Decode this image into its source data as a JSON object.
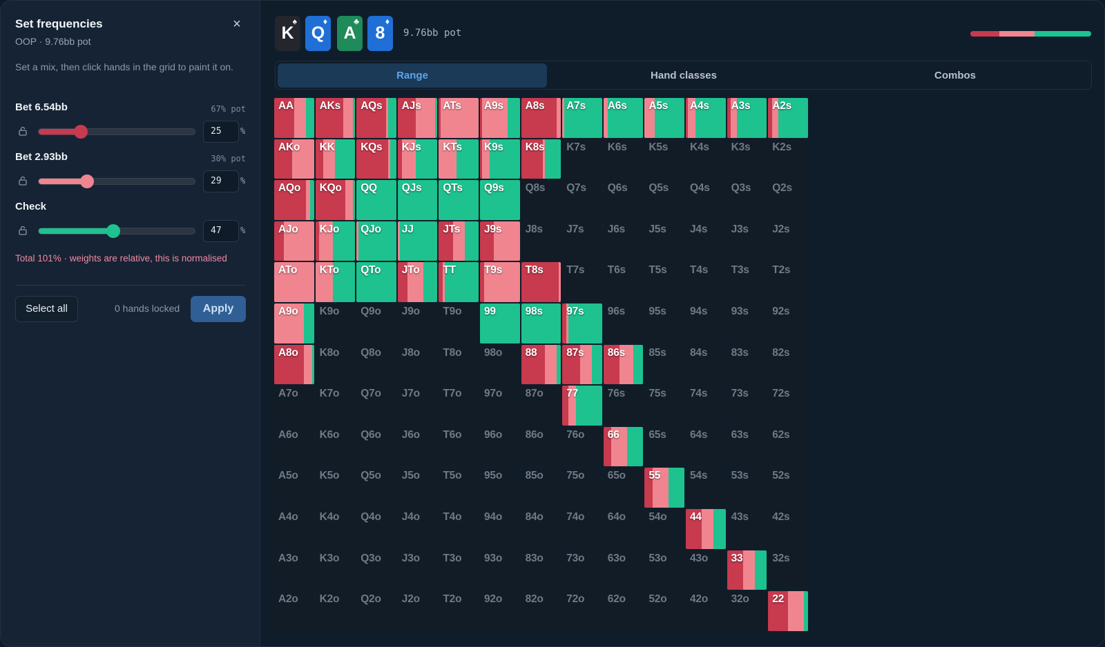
{
  "panel": {
    "title": "Set frequencies",
    "subtitle": "OOP · 9.76bb pot",
    "close_icon": "×",
    "description": "Set a mix, then click hands in the grid to paint it on.",
    "actions": [
      {
        "label": "Bet 6.54bb",
        "pot": "67% pot",
        "value": "25",
        "unit": "%",
        "level": 0.27,
        "color": "#c83a4e"
      },
      {
        "label": "Bet 2.93bb",
        "pot": "30% pot",
        "value": "29",
        "unit": "%",
        "level": 0.31,
        "color": "#f08590"
      },
      {
        "label": "Check",
        "pot": "",
        "value": "47",
        "unit": "%",
        "level": 0.48,
        "color": "#1ec28f"
      }
    ],
    "total_note": "Total 101% · weights are relative, this is normalised",
    "select_all_label": "Select all",
    "locked_text": "0 hands locked",
    "apply_label": "Apply"
  },
  "board": [
    {
      "rank": "K",
      "suit": "♠",
      "color": "#23262c"
    },
    {
      "rank": "Q",
      "suit": "♦",
      "color": "#1f6fd6"
    },
    {
      "rank": "A",
      "suit": "♣",
      "color": "#1f8a5a"
    },
    {
      "rank": "8",
      "suit": "♦",
      "color": "#1f6fd6"
    }
  ],
  "pot_label": "9.76bb pot",
  "overall_mix": [
    0.24,
    0.29,
    0.47
  ],
  "tabs": [
    {
      "label": "Range",
      "active": true
    },
    {
      "label": "Hand classes",
      "active": false
    },
    {
      "label": "Combos",
      "active": false
    }
  ],
  "colors": {
    "bet_big": "#c83a4e",
    "bet_small": "#f08590",
    "check": "#1ec28f"
  },
  "grid": {
    "rows": [
      [
        "AA",
        "AKs",
        "AQs",
        "AJs",
        "ATs",
        "A9s",
        "A8s",
        "A7s",
        "A6s",
        "A5s",
        "A4s",
        "A3s",
        "A2s"
      ],
      [
        "AKo",
        "KK",
        "KQs",
        "KJs",
        "KTs",
        "K9s",
        "K8s",
        "K7s",
        "K6s",
        "K5s",
        "K4s",
        "K3s",
        "K2s"
      ],
      [
        "AQo",
        "KQo",
        "QQ",
        "QJs",
        "QTs",
        "Q9s",
        "Q8s",
        "Q7s",
        "Q6s",
        "Q5s",
        "Q4s",
        "Q3s",
        "Q2s"
      ],
      [
        "AJo",
        "KJo",
        "QJo",
        "JJ",
        "JTs",
        "J9s",
        "J8s",
        "J7s",
        "J6s",
        "J5s",
        "J4s",
        "J3s",
        "J2s"
      ],
      [
        "ATo",
        "KTo",
        "QTo",
        "JTo",
        "TT",
        "T9s",
        "T8s",
        "T7s",
        "T6s",
        "T5s",
        "T4s",
        "T3s",
        "T2s"
      ],
      [
        "A9o",
        "K9o",
        "Q9o",
        "J9o",
        "T9o",
        "99",
        "98s",
        "97s",
        "96s",
        "95s",
        "94s",
        "93s",
        "92s"
      ],
      [
        "A8o",
        "K8o",
        "Q8o",
        "J8o",
        "T8o",
        "98o",
        "88",
        "87s",
        "86s",
        "85s",
        "84s",
        "83s",
        "82s"
      ],
      [
        "A7o",
        "K7o",
        "Q7o",
        "J7o",
        "T7o",
        "97o",
        "87o",
        "77",
        "76s",
        "75s",
        "74s",
        "73s",
        "72s"
      ],
      [
        "A6o",
        "K6o",
        "Q6o",
        "J6o",
        "T6o",
        "96o",
        "86o",
        "76o",
        "66",
        "65s",
        "64s",
        "63s",
        "62s"
      ],
      [
        "A5o",
        "K5o",
        "Q5o",
        "J5o",
        "T5o",
        "95o",
        "85o",
        "75o",
        "65o",
        "55",
        "54s",
        "53s",
        "52s"
      ],
      [
        "A4o",
        "K4o",
        "Q4o",
        "J4o",
        "T4o",
        "94o",
        "84o",
        "74o",
        "64o",
        "54o",
        "44",
        "43s",
        "42s"
      ],
      [
        "A3o",
        "K3o",
        "Q3o",
        "J3o",
        "T3o",
        "93o",
        "83o",
        "73o",
        "63o",
        "53o",
        "43o",
        "33",
        "32s"
      ],
      [
        "A2o",
        "K2o",
        "Q2o",
        "J2o",
        "T2o",
        "92o",
        "82o",
        "72o",
        "62o",
        "52o",
        "42o",
        "32o",
        "22"
      ]
    ],
    "mixes": {
      "AA": [
        0.5,
        0.3,
        0.2
      ],
      "AKs": [
        0.7,
        0.25,
        0.05
      ],
      "AQs": [
        0.75,
        0.05,
        0.2
      ],
      "AJs": [
        0.45,
        0.5,
        0.05
      ],
      "ATs": [
        0.05,
        0.95,
        0
      ],
      "A9s": [
        0.05,
        0.65,
        0.3
      ],
      "A8s": [
        0.9,
        0.1,
        0
      ],
      "A7s": [
        0,
        0.05,
        0.95
      ],
      "A6s": [
        0,
        0.1,
        0.9
      ],
      "A5s": [
        0,
        0.25,
        0.75
      ],
      "A4s": [
        0.05,
        0.2,
        0.75
      ],
      "A3s": [
        0.1,
        0.15,
        0.75
      ],
      "A2s": [
        0.1,
        0.15,
        0.75
      ],
      "AKo": [
        0.45,
        0.55,
        0
      ],
      "KK": [
        0.2,
        0.3,
        0.5
      ],
      "KQs": [
        0.8,
        0.05,
        0.15
      ],
      "KJs": [
        0.1,
        0.35,
        0.55
      ],
      "KTs": [
        0,
        0.45,
        0.55
      ],
      "K9s": [
        0.05,
        0.2,
        0.75
      ],
      "K8s": [
        0.55,
        0.05,
        0.4
      ],
      "AQo": [
        0.8,
        0.1,
        0.1
      ],
      "KQo": [
        0.75,
        0.2,
        0.05
      ],
      "QQ": [
        0,
        0,
        1
      ],
      "QJs": [
        0,
        0,
        1
      ],
      "QTs": [
        0,
        0,
        1
      ],
      "Q9s": [
        0,
        0,
        1
      ],
      "AJo": [
        0.25,
        0.75,
        0
      ],
      "KJo": [
        0.1,
        0.35,
        0.55
      ],
      "QJo": [
        0,
        0.05,
        0.95
      ],
      "JJ": [
        0,
        0.05,
        0.95
      ],
      "JTs": [
        0.35,
        0.3,
        0.35
      ],
      "J9s": [
        0.35,
        0.65,
        0
      ],
      "ATo": [
        0,
        1,
        0
      ],
      "KTo": [
        0,
        0.45,
        0.55
      ],
      "QTo": [
        0,
        0,
        1
      ],
      "JTo": [
        0.25,
        0.4,
        0.35
      ],
      "TT": [
        0.1,
        0.05,
        0.85
      ],
      "T9s": [
        0.1,
        0.9,
        0
      ],
      "T8s": [
        0.95,
        0.05,
        0
      ],
      "A9o": [
        0,
        0.75,
        0.25
      ],
      "99": [
        0,
        0,
        1
      ],
      "98s": [
        0,
        0,
        1
      ],
      "97s": [
        0.1,
        0.05,
        0.85
      ],
      "A8o": [
        0.75,
        0.2,
        0.05
      ],
      "88": [
        0.6,
        0.3,
        0.1
      ],
      "87s": [
        0.45,
        0.3,
        0.25
      ],
      "86s": [
        0.4,
        0.35,
        0.25
      ],
      "77": [
        0.15,
        0.2,
        0.65
      ],
      "66": [
        0.2,
        0.4,
        0.4
      ],
      "55": [
        0.2,
        0.4,
        0.4
      ],
      "44": [
        0.4,
        0.3,
        0.3
      ],
      "33": [
        0.4,
        0.3,
        0.3
      ],
      "22": [
        0.5,
        0.4,
        0.1
      ]
    }
  }
}
